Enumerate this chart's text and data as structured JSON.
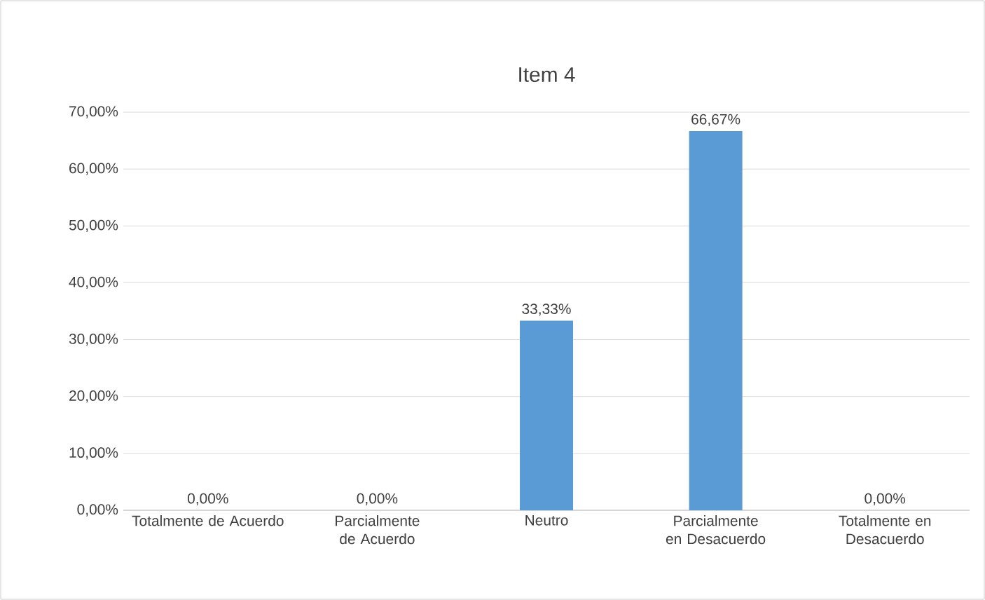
{
  "chart_data": {
    "type": "bar",
    "title": "Item 4",
    "categories": [
      "Totalmente de Acuerdo",
      "Parcialmente de Acuerdo",
      "Neutro",
      "Parcialmente en Desacuerdo",
      "Totalmente en Desacuerdo"
    ],
    "values": [
      0,
      0,
      33.33,
      66.67,
      0
    ],
    "value_labels": [
      "0,00%",
      "0,00%",
      "33,33%",
      "66,67%",
      "0,00%"
    ],
    "color": "#5b9bd5",
    "ylim": [
      0,
      70
    ],
    "yticks": [
      {
        "value": 0,
        "label": "0,00%"
      },
      {
        "value": 10,
        "label": "10,00%"
      },
      {
        "value": 20,
        "label": "20,00%"
      },
      {
        "value": 30,
        "label": "30,00%"
      },
      {
        "value": 40,
        "label": "40,00%"
      },
      {
        "value": 50,
        "label": "50,00%"
      },
      {
        "value": 60,
        "label": "60,00%"
      },
      {
        "value": 70,
        "label": "70,00%"
      }
    ],
    "grid": "y"
  }
}
